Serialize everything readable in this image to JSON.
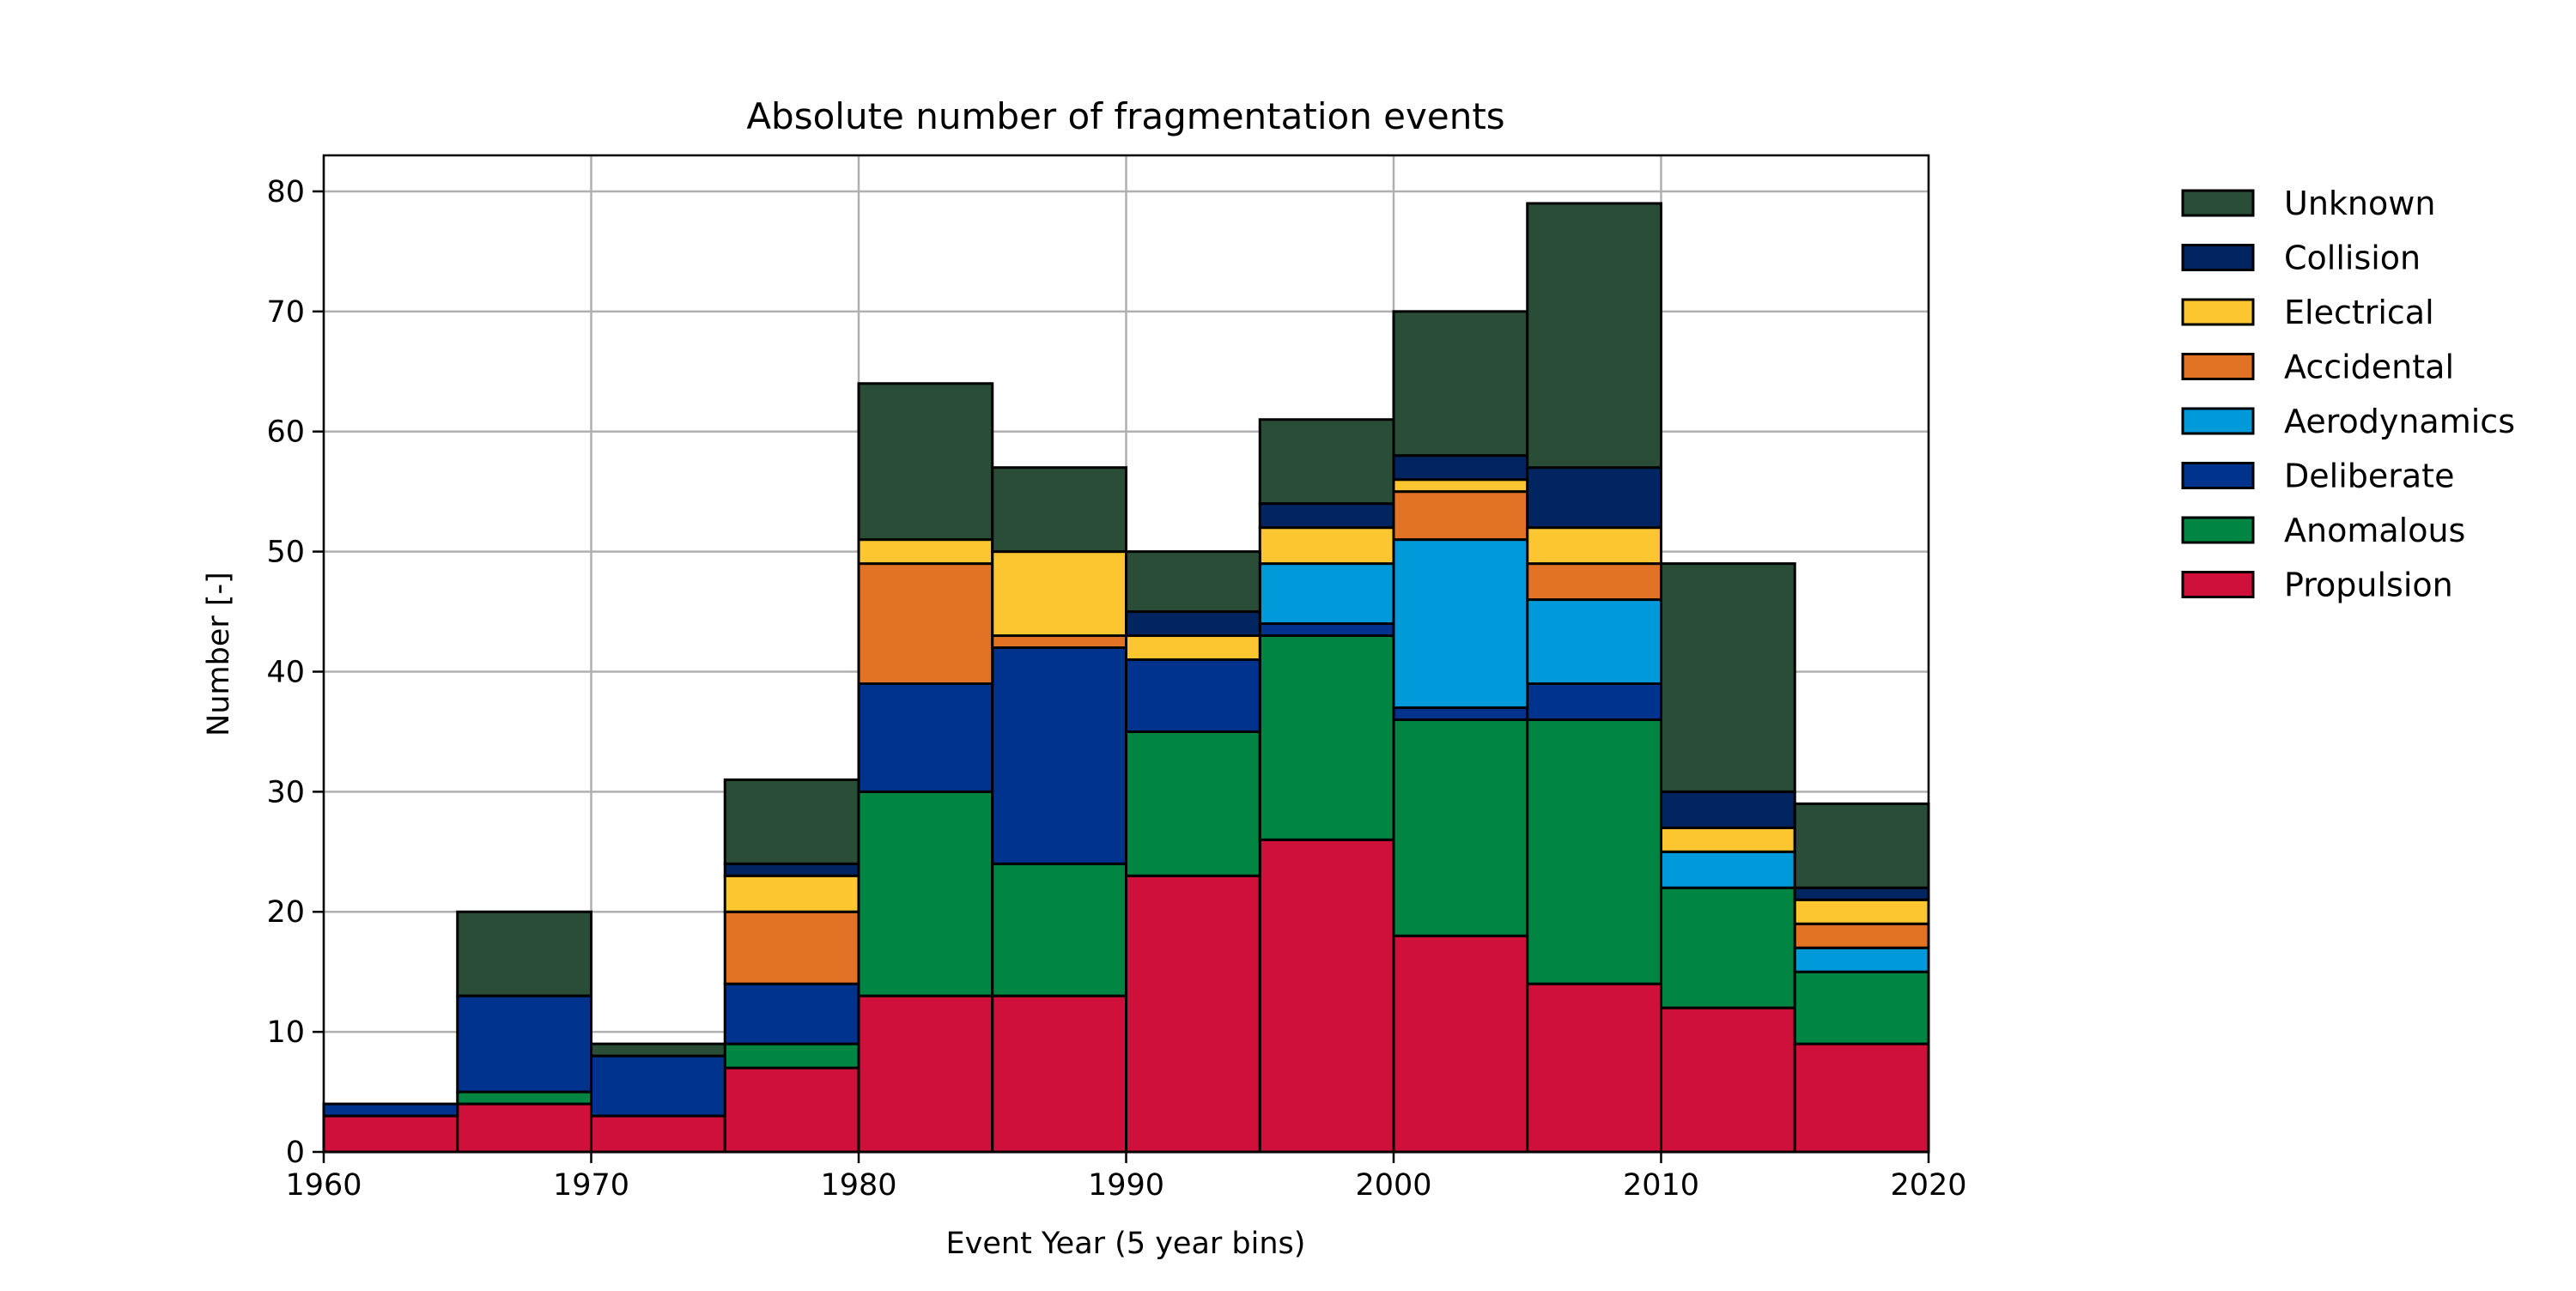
{
  "chart_data": {
    "type": "bar",
    "stacked": true,
    "title": "Absolute number of fragmentation events",
    "xlabel": "Event Year (5 year bins)",
    "ylabel": "Number [-]",
    "xlim": [
      1960,
      2020
    ],
    "ylim": [
      0,
      83
    ],
    "xticks": [
      1960,
      1970,
      1980,
      1990,
      2000,
      2010,
      2020
    ],
    "yticks": [
      0,
      10,
      20,
      30,
      40,
      50,
      60,
      70,
      80
    ],
    "grid": true,
    "legend_placement": "outside-right",
    "bin_edges": [
      1960,
      1965,
      1970,
      1975,
      1980,
      1985,
      1990,
      1995,
      2000,
      2005,
      2010,
      2015,
      2020
    ],
    "series": [
      {
        "name": "Propulsion",
        "color": "#cf103a",
        "values": [
          3,
          4,
          3,
          7,
          13,
          13,
          23,
          26,
          18,
          14,
          12,
          9
        ]
      },
      {
        "name": "Anomalous",
        "color": "#008542",
        "values": [
          0,
          1,
          0,
          2,
          17,
          11,
          12,
          17,
          18,
          22,
          10,
          6
        ]
      },
      {
        "name": "Deliberate",
        "color": "#00338e",
        "values": [
          1,
          8,
          5,
          5,
          9,
          18,
          6,
          1,
          1,
          3,
          0,
          0
        ]
      },
      {
        "name": "Aerodynamics",
        "color": "#0099da",
        "values": [
          0,
          0,
          0,
          0,
          0,
          0,
          0,
          5,
          14,
          7,
          3,
          2
        ]
      },
      {
        "name": "Accidental",
        "color": "#e27324",
        "values": [
          0,
          0,
          0,
          6,
          10,
          1,
          0,
          0,
          4,
          3,
          0,
          2
        ]
      },
      {
        "name": "Electrical",
        "color": "#fcc630",
        "values": [
          0,
          0,
          0,
          3,
          2,
          7,
          2,
          3,
          1,
          3,
          2,
          2
        ]
      },
      {
        "name": "Collision",
        "color": "#002561",
        "values": [
          0,
          0,
          0,
          1,
          0,
          0,
          2,
          2,
          2,
          5,
          3,
          1
        ]
      },
      {
        "name": "Unknown",
        "color": "#294d36",
        "values": [
          0,
          7,
          1,
          7,
          13,
          7,
          5,
          7,
          12,
          22,
          19,
          7
        ]
      }
    ]
  }
}
